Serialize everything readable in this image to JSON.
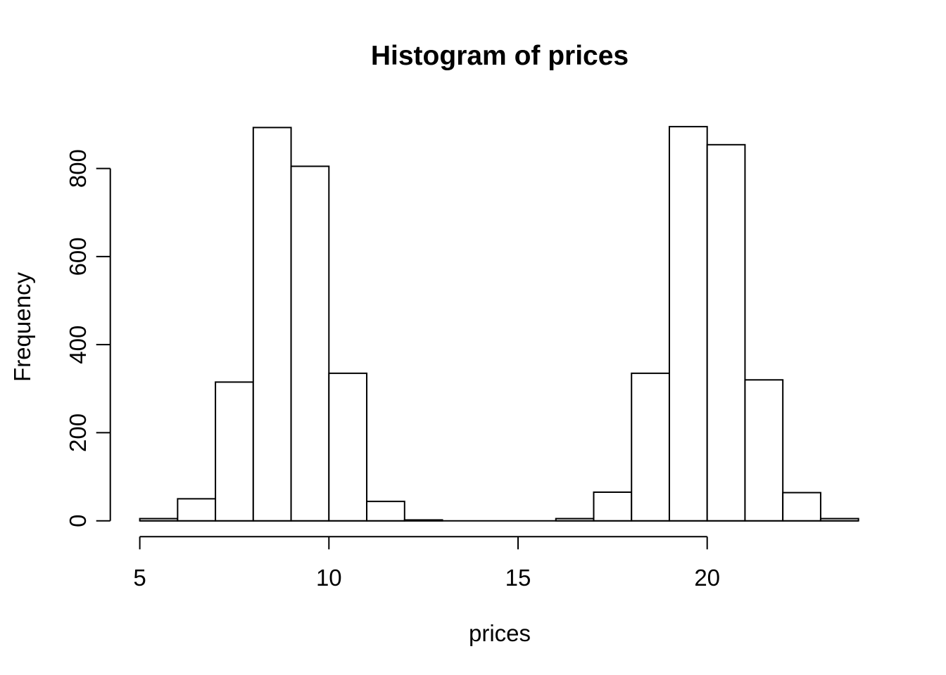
{
  "chart_data": {
    "type": "bar",
    "chart_kind": "histogram",
    "title": "Histogram of prices",
    "xlabel": "prices",
    "ylabel": "Frequency",
    "bin_edges": [
      5,
      6,
      7,
      8,
      9,
      10,
      11,
      12,
      13,
      14,
      15,
      16,
      17,
      18,
      19,
      20,
      21,
      22,
      23,
      24
    ],
    "counts": [
      5,
      50,
      315,
      893,
      805,
      335,
      44,
      2,
      0,
      0,
      0,
      5,
      65,
      335,
      895,
      854,
      320,
      64,
      5
    ],
    "x_ticks": [
      5,
      10,
      15,
      20
    ],
    "y_ticks": [
      0,
      200,
      400,
      600,
      800
    ],
    "xlim": [
      5,
      24
    ],
    "ylim": [
      0,
      895
    ],
    "grid": false,
    "legend": "none",
    "colors": {
      "bar_fill": "#ffffff",
      "stroke": "#000000",
      "text": "#000000",
      "background": "#ffffff"
    }
  }
}
